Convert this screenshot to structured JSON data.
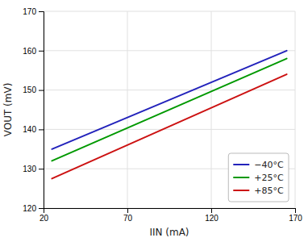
{
  "chart_data": {
    "type": "line",
    "x_label": "IIN (mA)",
    "y_label": "VOUT (mV)",
    "x": [
      25,
      165
    ],
    "series": [
      {
        "name": "−40°C",
        "color": "#2222bb",
        "values": [
          135.0,
          160.0
        ]
      },
      {
        "name": "+25°C",
        "color": "#009900",
        "values": [
          132.0,
          158.0
        ]
      },
      {
        "name": "+85°C",
        "color": "#cc1111",
        "values": [
          127.5,
          154.0
        ]
      }
    ],
    "xlim": [
      20,
      170
    ],
    "ylim": [
      120,
      170
    ],
    "xticks": [
      20,
      70,
      120,
      170
    ],
    "yticks": [
      120,
      130,
      140,
      150,
      160,
      170
    ],
    "grid": true,
    "legend": "lower right"
  }
}
